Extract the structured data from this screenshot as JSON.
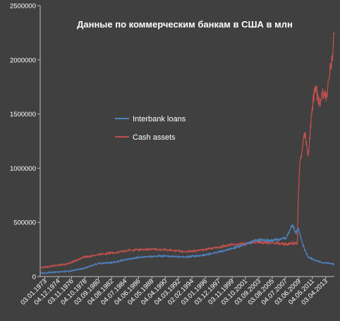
{
  "chart_data": {
    "type": "line",
    "title": "Данные по коммерческим банкам в США  в млн",
    "xlabel": "",
    "ylabel": "",
    "ylim": [
      0,
      2500000
    ],
    "y_ticks": [
      0,
      500000,
      1000000,
      1500000,
      2000000,
      2500000
    ],
    "y_tick_labels": [
      "0",
      "500000",
      "1000000",
      "1500000",
      "2000000",
      "2500000"
    ],
    "x_tick_labels": [
      "03.01.1973",
      "04.12.1974",
      "03.11.1976",
      "04.10.1978",
      "03.09.1980",
      "04.08.1982",
      "04.07.1984",
      "04.06.1986",
      "04.05.1988",
      "04.04.1990",
      "04.03.1992",
      "02.02.1994",
      "03.01.1996",
      "03.12.1997",
      "03.11.1999",
      "03.10.2001",
      "03.09.2003",
      "03.08.2005",
      "04.07.2007",
      "03.06.2009",
      "04.05.2011",
      "03.04.2013"
    ],
    "grid": false,
    "legend_position": "center-left",
    "colors": {
      "background": "#404040",
      "axis": "#bfbfbf",
      "text": "#ffffff",
      "interbank": "#4f81bd",
      "cash": "#c0504d"
    },
    "series": [
      {
        "name": "Interbank loans",
        "color": "#4f81bd",
        "years": [
          1973.0,
          1975.0,
          1977.0,
          1979.0,
          1981.0,
          1983.0,
          1985.0,
          1987.0,
          1990.0,
          1993.0,
          1996.0,
          1999.0,
          2001.0,
          2003.0,
          2005.0,
          2007.0,
          2007.8,
          2008.3,
          2008.6,
          2009.0,
          2009.5,
          2010.0,
          2011.0,
          2012.0,
          2013.0,
          2013.6
        ],
        "values": [
          30000,
          40000,
          50000,
          75000,
          120000,
          130000,
          160000,
          180000,
          190000,
          180000,
          200000,
          250000,
          290000,
          340000,
          330000,
          360000,
          480000,
          400000,
          450000,
          350000,
          250000,
          180000,
          150000,
          130000,
          120000,
          115000
        ]
      },
      {
        "name": "Cash assets",
        "color": "#c0504d",
        "years": [
          1973.0,
          1975.0,
          1977.0,
          1979.0,
          1981.0,
          1983.0,
          1985.0,
          1987.0,
          1990.0,
          1993.0,
          1996.0,
          1999.0,
          2001.0,
          2003.0,
          2005.0,
          2007.0,
          2008.5,
          2008.6,
          2008.85,
          2009.0,
          2009.5,
          2010.0,
          2010.5,
          2011.0,
          2011.5,
          2012.0,
          2012.5,
          2012.8,
          2013.0,
          2013.3,
          2013.6
        ],
        "values": [
          80000,
          100000,
          120000,
          180000,
          200000,
          220000,
          240000,
          250000,
          250000,
          230000,
          250000,
          290000,
          300000,
          320000,
          310000,
          300000,
          310000,
          700000,
          1050000,
          1100000,
          1320000,
          1100000,
          1550000,
          1750000,
          1600000,
          1700000,
          1650000,
          1800000,
          1900000,
          2000000,
          2300000
        ]
      }
    ]
  }
}
